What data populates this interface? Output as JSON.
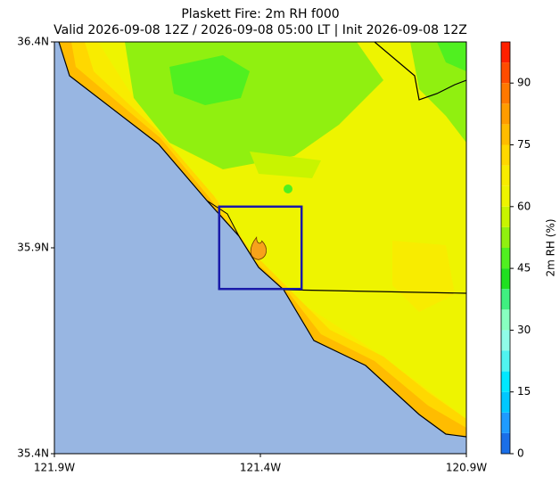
{
  "map": {
    "title": "Plaskett Fire: 2m RH f000",
    "subtitle": "Valid 2026-09-08 12Z / 2026-09-08 05:00 LT | Init 2026-09-08 12Z",
    "xlim": [
      -121.9,
      -120.9
    ],
    "ylim": [
      35.4,
      36.4
    ],
    "xticks": [
      {
        "value": -121.9,
        "label": "121.9W"
      },
      {
        "value": -121.4,
        "label": "121.4W"
      },
      {
        "value": -120.9,
        "label": "120.9W"
      }
    ],
    "yticks": [
      {
        "value": 35.4,
        "label": "35.4N"
      },
      {
        "value": 35.9,
        "label": "35.9N"
      },
      {
        "value": 36.4,
        "label": "36.4N"
      }
    ],
    "domain_box": {
      "lon": [
        -121.5,
        -121.3
      ],
      "lat": [
        35.8,
        36.0
      ],
      "color": "#1a1aa8"
    },
    "fire_location": {
      "lon": -121.405,
      "lat": 35.895
    },
    "colorbar": {
      "label": "2m RH (%)",
      "lim": [
        0,
        100
      ],
      "ticks": [
        0,
        15,
        30,
        45,
        60,
        75,
        90
      ],
      "levels": [
        0,
        5,
        10,
        15,
        20,
        25,
        30,
        35,
        40,
        45,
        50,
        55,
        60,
        65,
        70,
        75,
        80,
        85,
        90,
        95,
        100
      ],
      "colors": [
        "#1a6fe8",
        "#1e9bff",
        "#00c8ff",
        "#00e8ff",
        "#50f4f0",
        "#90fce8",
        "#88ffc0",
        "#40f080",
        "#20e020",
        "#50f020",
        "#90f010",
        "#c8f400",
        "#eef400",
        "#f8ec00",
        "#ffd800",
        "#ffbc00",
        "#ff9c00",
        "#ff7800",
        "#ff4c00",
        "#ff2000"
      ]
    }
  }
}
